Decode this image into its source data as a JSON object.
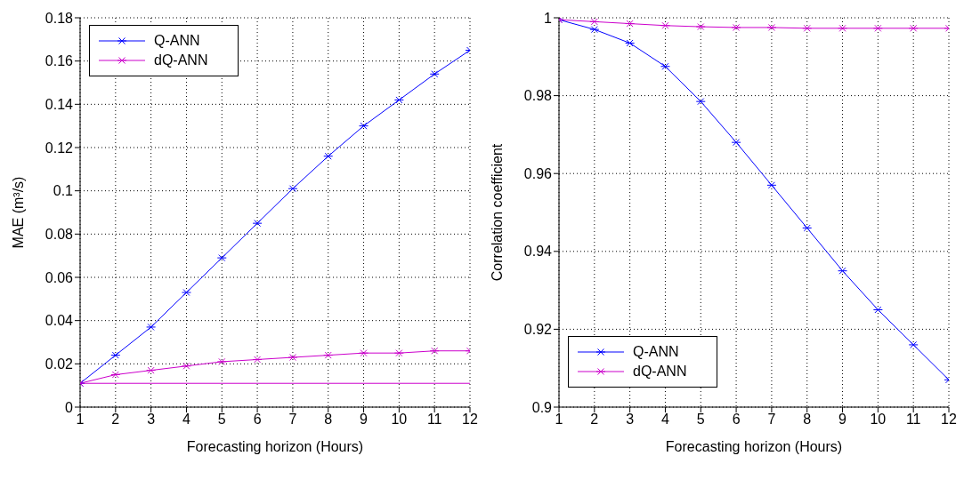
{
  "chart_data": [
    {
      "type": "line",
      "xlabel": "Forecasting horizon (Hours)",
      "ylabel": "MAE (m³/s)",
      "x": [
        1,
        2,
        3,
        4,
        5,
        6,
        7,
        8,
        9,
        10,
        11,
        12
      ],
      "xlim": [
        1,
        12
      ],
      "xticks": [
        1,
        2,
        3,
        4,
        5,
        6,
        7,
        8,
        9,
        10,
        11,
        12
      ],
      "ylim": [
        0,
        0.18
      ],
      "yticks": [
        0,
        0.02,
        0.04,
        0.06,
        0.08,
        0.1,
        0.12,
        0.14,
        0.16,
        0.18
      ],
      "grid": true,
      "legend": "top left",
      "marker": "cross",
      "line_style": "solid",
      "series": [
        {
          "name": "Q-ANN",
          "color": "#0000ff",
          "values": [
            0.011,
            0.024,
            0.037,
            0.053,
            0.069,
            0.085,
            0.101,
            0.116,
            0.13,
            0.142,
            0.154,
            0.165
          ]
        },
        {
          "name": "dQ-ANN",
          "color": "#cc00cc",
          "values": [
            0.011,
            0.015,
            0.017,
            0.019,
            0.021,
            0.022,
            0.023,
            0.024,
            0.025,
            0.025,
            0.026,
            0.026
          ]
        }
      ],
      "ref_lines": [
        {
          "axis": "y",
          "value": 0.011,
          "label": null,
          "color": "#cc00cc"
        }
      ]
    },
    {
      "type": "line",
      "xlabel": "Forecasting horizon (Hours)",
      "ylabel": "Correlation coefficient",
      "x": [
        1,
        2,
        3,
        4,
        5,
        6,
        7,
        8,
        9,
        10,
        11,
        12
      ],
      "xlim": [
        1,
        12
      ],
      "xticks": [
        1,
        2,
        3,
        4,
        5,
        6,
        7,
        8,
        9,
        10,
        11,
        12
      ],
      "ylim": [
        0.9,
        1
      ],
      "yticks": [
        0.9,
        0.92,
        0.94,
        0.96,
        0.98,
        1
      ],
      "grid": true,
      "legend": "bottom left",
      "marker": "cross",
      "line_style": "solid",
      "series": [
        {
          "name": "Q-ANN",
          "color": "#0000ff",
          "values": [
            0.9995,
            0.997,
            0.9935,
            0.9875,
            0.9785,
            0.968,
            0.957,
            0.946,
            0.935,
            0.925,
            0.916,
            0.907
          ]
        },
        {
          "name": "dQ-ANN",
          "color": "#cc00cc",
          "values": [
            0.9995,
            0.999,
            0.9985,
            0.998,
            0.9977,
            0.9975,
            0.9975,
            0.9973,
            0.9973,
            0.9973,
            0.9973,
            0.9973
          ]
        }
      ]
    }
  ]
}
